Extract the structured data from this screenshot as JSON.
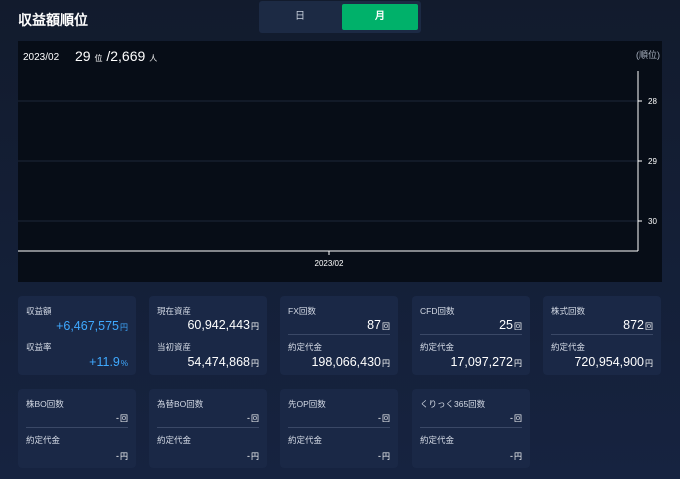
{
  "title": "収益額順位",
  "toggle": {
    "day": "日",
    "month": "月"
  },
  "chart": {
    "period": "2023/02",
    "rank": "29",
    "rank_unit": "位",
    "total": "/2,669",
    "total_unit": "人",
    "axis_unit": "(順位)",
    "y_ticks": [
      "28",
      "29",
      "30"
    ],
    "x_tick": "2023/02"
  },
  "chart_data": {
    "type": "line",
    "x": [
      "2023/02"
    ],
    "y_ticks": [
      28,
      29,
      30
    ],
    "ylabel": "(順位)",
    "series": [
      {
        "values": [
          29
        ]
      }
    ]
  },
  "cards": {
    "profit": {
      "label1": "収益額",
      "value1": "+6,467,575",
      "unit1": "円",
      "label2": "収益率",
      "value2": "+11.9",
      "unit2": "%"
    },
    "assets": {
      "label1": "現在資産",
      "value1": "60,942,443",
      "unit1": "円",
      "label2": "当初資産",
      "value2": "54,474,868",
      "unit2": "円"
    },
    "fx": {
      "label1": "FX回数",
      "value1": "87",
      "unit1": "回",
      "label2": "約定代金",
      "value2": "198,066,430",
      "unit2": "円"
    },
    "cfd": {
      "label1": "CFD回数",
      "value1": "25",
      "unit1": "回",
      "label2": "約定代金",
      "value2": "17,097,272",
      "unit2": "円"
    },
    "stock": {
      "label1": "株式回数",
      "value1": "872",
      "unit1": "回",
      "label2": "約定代金",
      "value2": "720,954,900",
      "unit2": "円"
    },
    "bo": {
      "label1": "株BO回数",
      "value1": "-",
      "unit1": "回",
      "label2": "約定代金",
      "value2": "-",
      "unit2": "円"
    },
    "fxbo": {
      "label1": "為替BO回数",
      "value1": "-",
      "unit1": "回",
      "label2": "約定代金",
      "value2": "-",
      "unit2": "円"
    },
    "op": {
      "label1": "先OP回数",
      "value1": "-",
      "unit1": "回",
      "label2": "約定代金",
      "value2": "-",
      "unit2": "円"
    },
    "kurikku": {
      "label1": "くりっく365回数",
      "value1": "-",
      "unit1": "回",
      "label2": "約定代金",
      "value2": "-",
      "unit2": "円"
    }
  }
}
